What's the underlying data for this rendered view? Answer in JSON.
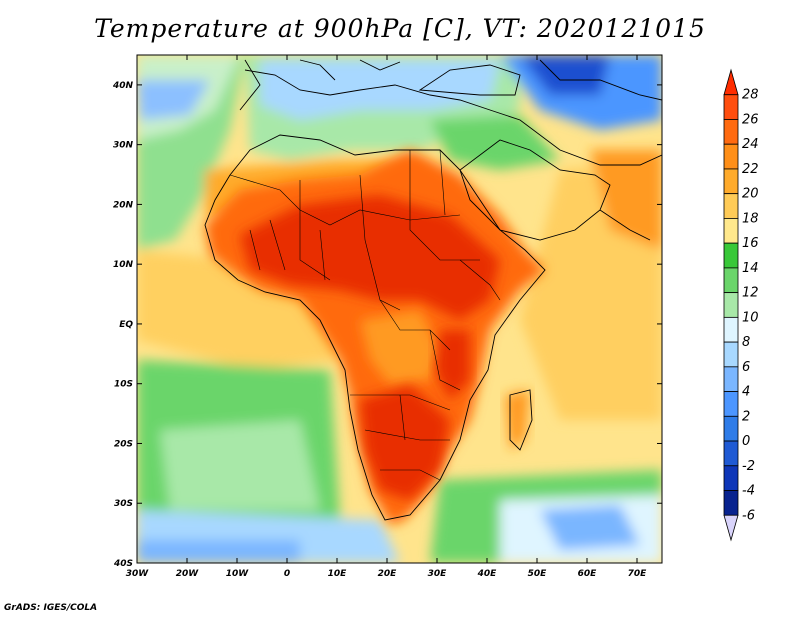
{
  "title": "Temperature at 900hPa [C], VT: 2020121015",
  "footer": "GrADS: IGES/COLA",
  "axes": {
    "lat_labels": [
      "40N",
      "30N",
      "20N",
      "10N",
      "EQ",
      "10S",
      "20S",
      "30S",
      "40S"
    ],
    "lon_labels": [
      "30W",
      "20W",
      "10W",
      "0",
      "10E",
      "20E",
      "30E",
      "40E",
      "50E",
      "60E",
      "70E"
    ],
    "lat_range": [
      -40,
      45
    ],
    "lon_range": [
      -30,
      75
    ]
  },
  "colorbar": {
    "labels": [
      "28",
      "26",
      "24",
      "22",
      "20",
      "18",
      "16",
      "14",
      "12",
      "10",
      "8",
      "6",
      "4",
      "2",
      "0",
      "-2",
      "-4",
      "-6"
    ],
    "colors": [
      "#ff2d00",
      "#ff4e0f",
      "#ff6a10",
      "#ff8f18",
      "#ffab2c",
      "#ffcb57",
      "#ffe88c",
      "#38c838",
      "#6ad56a",
      "#a8e8a8",
      "#dff5ff",
      "#a8d8ff",
      "#7ab6ff",
      "#4c96ff",
      "#2f7ce8",
      "#1f5ad4",
      "#0e36b8",
      "#08238f",
      "#d9d4fb"
    ],
    "colors_descending": true
  },
  "map_colors": {
    "sea_warm": "#ffcf60",
    "sea_mid": "#ffe48c",
    "sea_cool_green": "#6ad56a",
    "sea_south_blue": "#a8d8ff",
    "land_hot": "#e82f00",
    "land_warm": "#ff6a10",
    "land_orange": "#ff9a20",
    "mediterranean_blue": "#8cc0ff",
    "cold_north": "#1f4fd0"
  }
}
